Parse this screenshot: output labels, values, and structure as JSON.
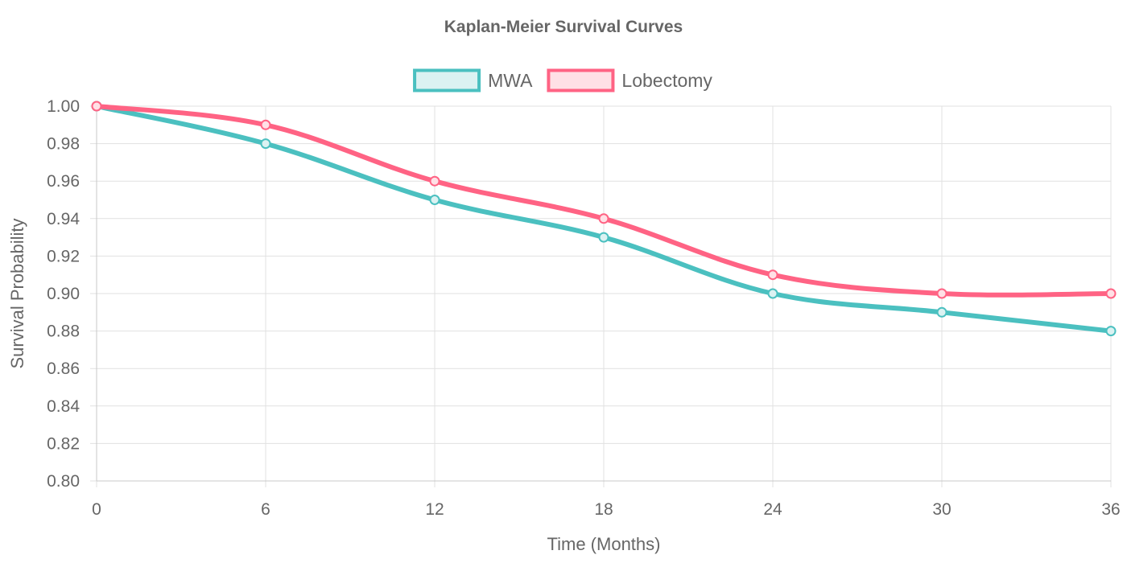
{
  "chart_data": {
    "type": "line",
    "title": "Kaplan-Meier Survival Curves",
    "xlabel": "Time (Months)",
    "ylabel": "Survival Probability",
    "x": [
      0,
      6,
      12,
      18,
      24,
      30,
      36
    ],
    "x_tick_labels": [
      "0",
      "6",
      "12",
      "18",
      "24",
      "30",
      "36"
    ],
    "xlim": [
      0,
      36
    ],
    "ylim": [
      0.8,
      1.0
    ],
    "y_tick_labels": [
      "0.80",
      "0.82",
      "0.84",
      "0.86",
      "0.88",
      "0.90",
      "0.92",
      "0.94",
      "0.96",
      "0.98",
      "1.00"
    ],
    "grid": true,
    "legend_position": "top-center",
    "series": [
      {
        "name": "MWA",
        "values": [
          1.0,
          0.98,
          0.95,
          0.93,
          0.9,
          0.89,
          0.88
        ],
        "color": "#4bc0c0",
        "fill_color": "#dbf2f2"
      },
      {
        "name": "Lobectomy",
        "values": [
          1.0,
          0.99,
          0.96,
          0.94,
          0.91,
          0.9,
          0.9
        ],
        "color": "#ff6384",
        "fill_color": "#ffe0e6"
      }
    ]
  }
}
